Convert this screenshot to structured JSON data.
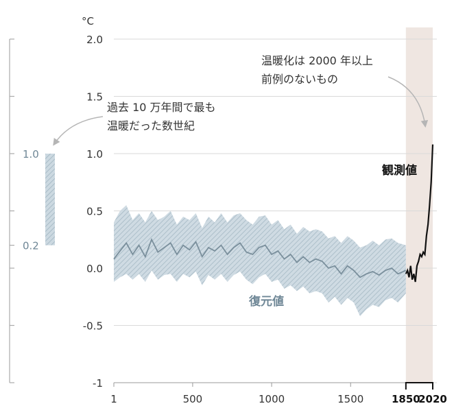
{
  "chart_data": {
    "type": "line",
    "title": "",
    "unit": "°C",
    "xlim": [
      1,
      2020
    ],
    "ylim": [
      -1,
      2.0
    ],
    "x_ticks": [
      {
        "value": 1,
        "label": "1",
        "bold": false
      },
      {
        "value": 500,
        "label": "500",
        "bold": false
      },
      {
        "value": 1000,
        "label": "1000",
        "bold": false
      },
      {
        "value": 1500,
        "label": "1500",
        "bold": false
      },
      {
        "value": 1850,
        "label": "1850",
        "bold": true
      },
      {
        "value": 2020,
        "label": "2020",
        "bold": true
      }
    ],
    "y_ticks": [
      {
        "value": 2.0,
        "label": "2.0"
      },
      {
        "value": 1.5,
        "label": "1.5"
      },
      {
        "value": 1.0,
        "label": "1.0"
      },
      {
        "value": 0.5,
        "label": "0.5"
      },
      {
        "value": 0.0,
        "label": "0.0"
      },
      {
        "value": -0.5,
        "label": "-0.5"
      },
      {
        "value": -1,
        "label": "-1"
      }
    ],
    "highlight_period": {
      "start": 1850,
      "end": 2020,
      "color": "#efe6e1"
    },
    "series": [
      {
        "name": "復元値",
        "color": "#7a8f9c",
        "band_color": "#b6c8d2",
        "x": [
          1,
          40,
          80,
          120,
          160,
          200,
          240,
          280,
          320,
          360,
          400,
          440,
          480,
          520,
          560,
          600,
          640,
          680,
          720,
          760,
          800,
          840,
          880,
          920,
          960,
          1000,
          1040,
          1080,
          1120,
          1160,
          1200,
          1240,
          1280,
          1320,
          1360,
          1400,
          1440,
          1480,
          1520,
          1560,
          1600,
          1640,
          1680,
          1720,
          1760,
          1800,
          1850
        ],
        "values": [
          0.08,
          0.15,
          0.22,
          0.12,
          0.2,
          0.1,
          0.25,
          0.14,
          0.18,
          0.22,
          0.12,
          0.2,
          0.16,
          0.23,
          0.1,
          0.18,
          0.15,
          0.2,
          0.12,
          0.18,
          0.22,
          0.14,
          0.12,
          0.18,
          0.2,
          0.12,
          0.15,
          0.08,
          0.12,
          0.05,
          0.1,
          0.05,
          0.08,
          0.06,
          0.0,
          0.02,
          -0.05,
          0.02,
          -0.02,
          -0.08,
          -0.05,
          -0.03,
          -0.06,
          -0.02,
          0.0,
          -0.05,
          -0.02
        ],
        "lower": [
          -0.12,
          -0.08,
          -0.05,
          -0.1,
          -0.05,
          -0.12,
          -0.02,
          -0.1,
          -0.06,
          -0.05,
          -0.12,
          -0.05,
          -0.08,
          -0.03,
          -0.15,
          -0.06,
          -0.1,
          -0.05,
          -0.12,
          -0.06,
          -0.03,
          -0.1,
          -0.14,
          -0.08,
          -0.05,
          -0.12,
          -0.1,
          -0.18,
          -0.15,
          -0.2,
          -0.16,
          -0.22,
          -0.2,
          -0.22,
          -0.3,
          -0.25,
          -0.32,
          -0.26,
          -0.3,
          -0.42,
          -0.36,
          -0.32,
          -0.34,
          -0.28,
          -0.26,
          -0.3,
          -0.22
        ],
        "upper": [
          0.4,
          0.5,
          0.55,
          0.42,
          0.48,
          0.4,
          0.5,
          0.42,
          0.45,
          0.5,
          0.38,
          0.45,
          0.42,
          0.48,
          0.35,
          0.45,
          0.4,
          0.48,
          0.4,
          0.46,
          0.48,
          0.42,
          0.38,
          0.45,
          0.46,
          0.38,
          0.42,
          0.34,
          0.38,
          0.3,
          0.36,
          0.32,
          0.34,
          0.32,
          0.26,
          0.28,
          0.22,
          0.28,
          0.24,
          0.18,
          0.2,
          0.24,
          0.2,
          0.25,
          0.26,
          0.22,
          0.2
        ]
      },
      {
        "name": "観測値",
        "color": "#111111",
        "x": [
          1850,
          1860,
          1870,
          1880,
          1890,
          1900,
          1910,
          1920,
          1930,
          1940,
          1950,
          1960,
          1970,
          1980,
          1990,
          2000,
          2010,
          2020
        ],
        "values": [
          -0.05,
          -0.02,
          -0.08,
          0.02,
          -0.1,
          -0.05,
          -0.12,
          0.02,
          0.06,
          0.12,
          0.1,
          0.14,
          0.12,
          0.28,
          0.38,
          0.55,
          0.75,
          1.08
        ]
      }
    ],
    "paleo_bar": {
      "low": 0.2,
      "high": 1.0,
      "low_label": "0.2",
      "high_label": "1.0",
      "color": "#b6c8d2"
    },
    "annotations": [
      {
        "lines": [
          "温暖化は 2000 年以上",
          "前例のないもの"
        ]
      },
      {
        "lines": [
          "過去 10 万年間で最も",
          "温暖だった数世紀"
        ]
      }
    ]
  }
}
